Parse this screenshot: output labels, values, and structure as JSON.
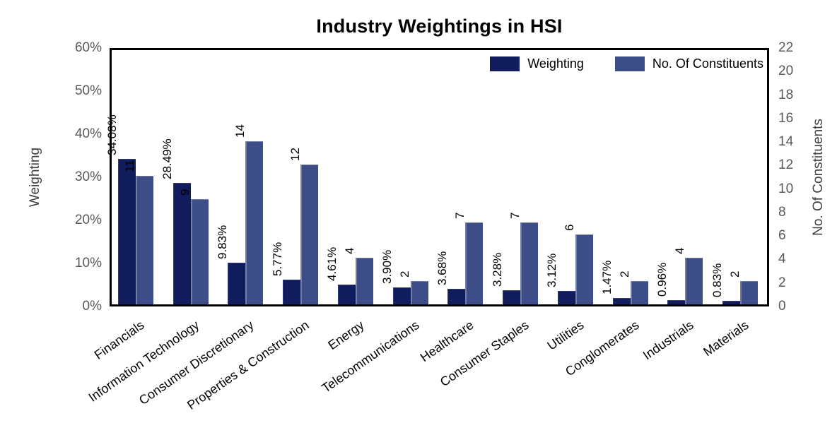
{
  "page": {
    "background": "#ffffff"
  },
  "chart_data": {
    "type": "bar",
    "title": "Industry Weightings in HSI",
    "grid": false,
    "legend_position": "top-right-inside",
    "categories": [
      "Financials",
      "Information Technology",
      "Consumer Discretionary",
      "Properties & Construction",
      "Energy",
      "Telecommunications",
      "Healthcare",
      "Consumer Staples",
      "Utilities",
      "Conglomerates",
      "Industrials",
      "Materials"
    ],
    "series": [
      {
        "name": "Weighting",
        "axis": "left",
        "color": "#101c5b",
        "values": [
          34.08,
          28.49,
          9.83,
          5.77,
          4.61,
          3.9,
          3.68,
          3.28,
          3.12,
          1.47,
          0.96,
          0.83
        ],
        "labels": [
          "34.08%",
          "28.49%",
          "9.83%",
          "5.77%",
          "4.61%",
          "3.90%",
          "3.68%",
          "3.28%",
          "3.12%",
          "1.47%",
          "0.96%",
          "0.83%"
        ]
      },
      {
        "name": "No. Of Constituents",
        "axis": "right",
        "color": "#3c4d87",
        "values": [
          11,
          9,
          14,
          12,
          4,
          2,
          7,
          7,
          6,
          2,
          4,
          2
        ],
        "labels": [
          "11",
          "9",
          "14",
          "12",
          "4",
          "2",
          "7",
          "7",
          "6",
          "2",
          "4",
          "2"
        ]
      }
    ],
    "left_axis": {
      "title": "Weighting",
      "min": 0,
      "max": 60,
      "tick_labels": [
        "60%",
        "50%",
        "40%",
        "30%",
        "20%",
        "10%",
        "0%"
      ],
      "tick_values": [
        60,
        50,
        40,
        30,
        20,
        10,
        0
      ]
    },
    "right_axis": {
      "title": "No. Of Constituents",
      "min": 0,
      "max": 22,
      "tick_labels": [
        "22",
        "20",
        "18",
        "16",
        "14",
        "12",
        "10",
        "8",
        "6",
        "4",
        "2",
        "0"
      ],
      "tick_values": [
        22,
        20,
        18,
        16,
        14,
        12,
        10,
        8,
        6,
        4,
        2,
        0
      ]
    },
    "colors": {
      "axis_tick_text": "#595959",
      "category_text": "#000000",
      "value_label_text": "#000000",
      "plot_border": "#000000"
    }
  }
}
